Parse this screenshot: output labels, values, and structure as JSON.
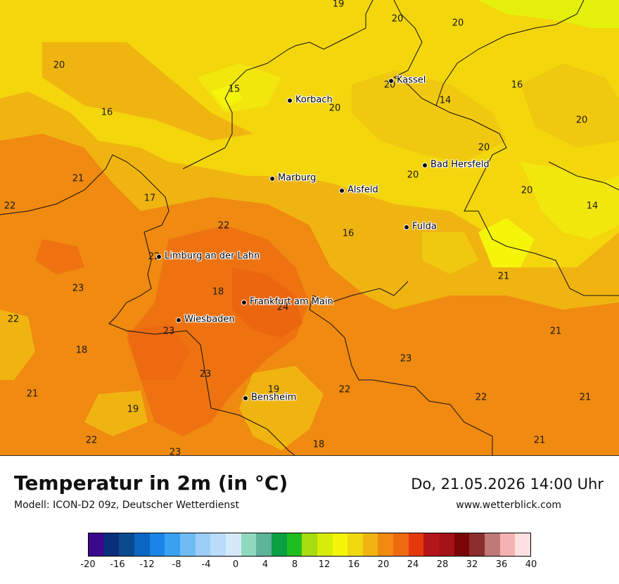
{
  "map": {
    "region_labels": [
      {
        "text": "19",
        "pos": "r01"
      },
      {
        "text": "20",
        "pos": "r02"
      },
      {
        "text": "20",
        "pos": "r03"
      },
      {
        "text": "20",
        "pos": "r04"
      },
      {
        "text": "15",
        "pos": "r05"
      },
      {
        "text": "20",
        "pos": "r06"
      },
      {
        "text": "20",
        "pos": "r07"
      },
      {
        "text": "16",
        "pos": "r08"
      },
      {
        "text": "16",
        "pos": "r09"
      },
      {
        "text": "14",
        "pos": "r10"
      },
      {
        "text": "20",
        "pos": "r11"
      },
      {
        "text": "20",
        "pos": "r12"
      },
      {
        "text": "21",
        "pos": "r13"
      },
      {
        "text": "20",
        "pos": "r14"
      },
      {
        "text": "20",
        "pos": "r15"
      },
      {
        "text": "22",
        "pos": "r16"
      },
      {
        "text": "17",
        "pos": "r17"
      },
      {
        "text": "14",
        "pos": "r18"
      },
      {
        "text": "22",
        "pos": "r19"
      },
      {
        "text": "16",
        "pos": "r20"
      },
      {
        "text": "22",
        "pos": "r21"
      },
      {
        "text": "21",
        "pos": "r22"
      },
      {
        "text": "23",
        "pos": "r23"
      },
      {
        "text": "18",
        "pos": "r24"
      },
      {
        "text": "24",
        "pos": "r25"
      },
      {
        "text": "22",
        "pos": "r26"
      },
      {
        "text": "23",
        "pos": "r27"
      },
      {
        "text": "21",
        "pos": "r28"
      },
      {
        "text": "18",
        "pos": "r29"
      },
      {
        "text": "23",
        "pos": "r30"
      },
      {
        "text": "23",
        "pos": "r31"
      },
      {
        "text": "19",
        "pos": "r32"
      },
      {
        "text": "22",
        "pos": "r33"
      },
      {
        "text": "21",
        "pos": "r34"
      },
      {
        "text": "19",
        "pos": "r35"
      },
      {
        "text": "22",
        "pos": "r36"
      },
      {
        "text": "21",
        "pos": "r37"
      },
      {
        "text": "22",
        "pos": "r38"
      },
      {
        "text": "18",
        "pos": "r39"
      },
      {
        "text": "21",
        "pos": "r40"
      },
      {
        "text": "23",
        "pos": "r41"
      }
    ],
    "cities": [
      {
        "name": "Kassel",
        "pos": "c1"
      },
      {
        "name": "Korbach",
        "pos": "c2"
      },
      {
        "name": "Bad Hersfeld",
        "pos": "c3"
      },
      {
        "name": "Marburg",
        "pos": "c4"
      },
      {
        "name": "Alsfeld",
        "pos": "c5"
      },
      {
        "name": "Fulda",
        "pos": "c6"
      },
      {
        "name": "Limburg an der Lahn",
        "pos": "c7"
      },
      {
        "name": "Frankfurt am Main",
        "pos": "c8"
      },
      {
        "name": "Wiesbaden",
        "pos": "c9"
      },
      {
        "name": "Bensheim",
        "pos": "c10"
      }
    ]
  },
  "footer": {
    "title": "Temperatur in 2m (in °C)",
    "model": "Modell: ICON-D2 09z, Deutscher Wetterdienst",
    "datetime": "Do, 21.05.2026 14:00 Uhr",
    "website": "www.wetterblick.com"
  },
  "legend": {
    "colors": [
      "#3b0a8c",
      "#0a2f7a",
      "#0b4a8e",
      "#0a66c2",
      "#1a85e6",
      "#3aa0f0",
      "#6fbcf5",
      "#9ccdf7",
      "#b9dcf9",
      "#d6e9fb",
      "#8fd9bf",
      "#5fb39a",
      "#0aa044",
      "#1fbe1f",
      "#a6dc10",
      "#d8ec0c",
      "#f5f50a",
      "#f1d80f",
      "#f0b410",
      "#f08a10",
      "#ee6a10",
      "#e6380c",
      "#b3161a",
      "#a51218",
      "#7a0606",
      "#8a2e2e",
      "#c07878",
      "#f5b2b2",
      "#fde0e0"
    ],
    "ticks": [
      "-20",
      "-16",
      "-12",
      "-8",
      "-4",
      "0",
      "4",
      "8",
      "12",
      "16",
      "20",
      "24",
      "28",
      "32",
      "36",
      "40"
    ]
  }
}
